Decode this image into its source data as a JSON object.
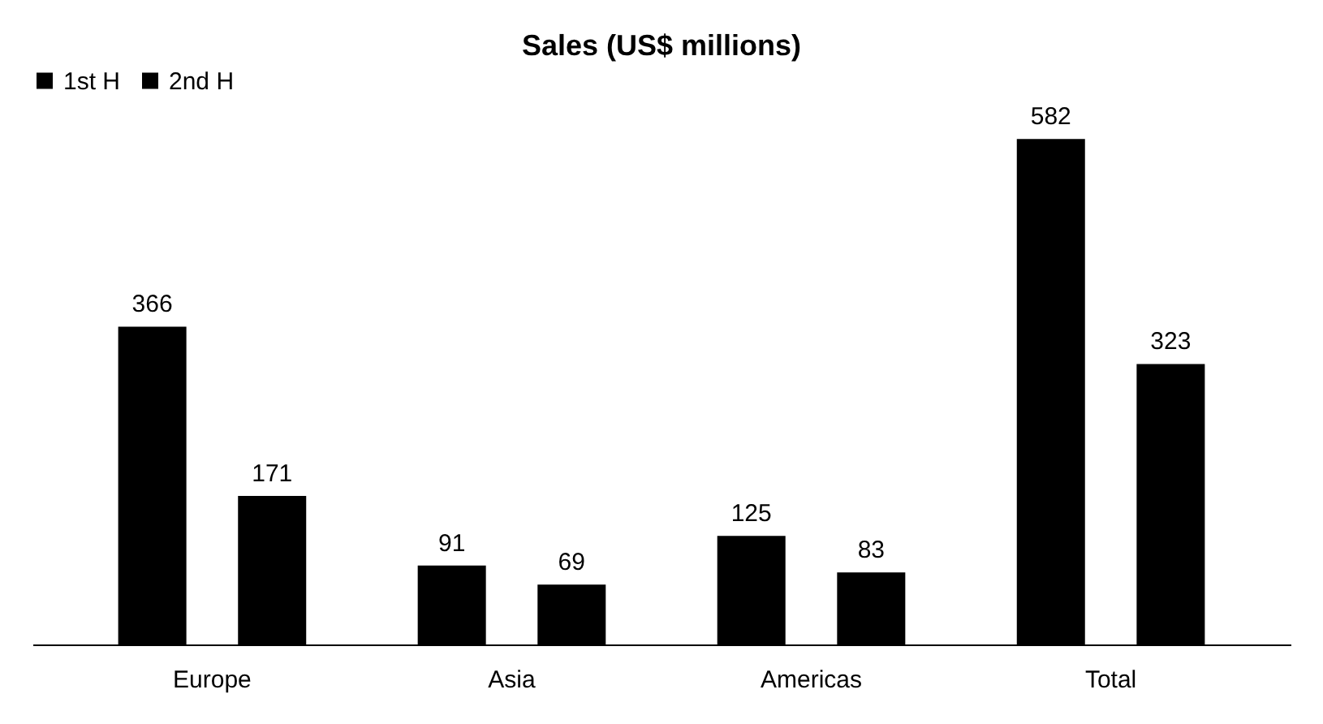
{
  "chart_data": {
    "type": "bar",
    "title": "Sales (US$ millions)",
    "categories": [
      "Europe",
      "Asia",
      "Americas",
      "Total"
    ],
    "series": [
      {
        "name": "1st H",
        "color": "#000000",
        "values": [
          366,
          91,
          125,
          582
        ]
      },
      {
        "name": "2nd H",
        "color": "#000000",
        "values": [
          171,
          69,
          83,
          323
        ]
      }
    ],
    "data_labels": true,
    "legend": "top",
    "grid": false,
    "tick_labels": "x"
  }
}
